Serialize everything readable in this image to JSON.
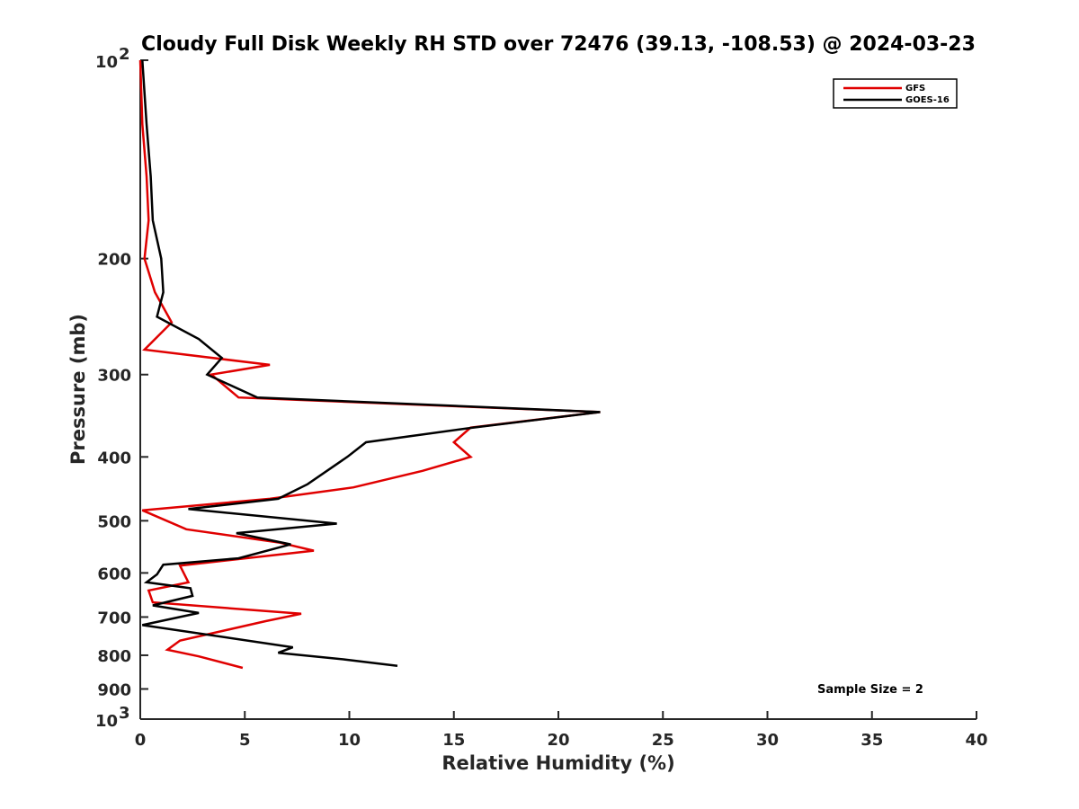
{
  "chart_data": {
    "type": "line",
    "title": "Cloudy Full Disk Weekly RH STD over 72476 (39.13, -108.53) @ 2024-03-23",
    "xlabel": "Relative Humidity (%)",
    "ylabel": "Pressure (mb)",
    "xlim": [
      0,
      40
    ],
    "ylim": [
      100,
      1000
    ],
    "yscale": "log",
    "y_reversed": true,
    "x_ticks": [
      "0",
      "5",
      "10",
      "15",
      "20",
      "25",
      "30",
      "35",
      "40"
    ],
    "y_ticks": [
      {
        "value": 100,
        "base": "10",
        "exp": "2"
      },
      {
        "value": 200,
        "label": "200"
      },
      {
        "value": 300,
        "label": "300"
      },
      {
        "value": 400,
        "label": "400"
      },
      {
        "value": 500,
        "label": "500"
      },
      {
        "value": 600,
        "label": "600"
      },
      {
        "value": 700,
        "label": "700"
      },
      {
        "value": 800,
        "label": "800"
      },
      {
        "value": 900,
        "label": "900"
      },
      {
        "value": 1000,
        "base": "10",
        "exp": "3"
      }
    ],
    "legend_position": "top-right",
    "grid": false,
    "annotation": "Sample Size = 2",
    "series": [
      {
        "name": "GFS",
        "color": "#e00000",
        "points": [
          [
            0.0,
            100
          ],
          [
            0.1,
            125
          ],
          [
            0.3,
            150
          ],
          [
            0.4,
            175
          ],
          [
            0.2,
            200
          ],
          [
            0.7,
            225
          ],
          [
            1.5,
            250
          ],
          [
            0.2,
            275
          ],
          [
            6.2,
            290
          ],
          [
            3.4,
            300
          ],
          [
            4.7,
            325
          ],
          [
            22.0,
            342
          ],
          [
            15.8,
            361
          ],
          [
            15.0,
            380
          ],
          [
            15.8,
            400
          ],
          [
            13.5,
            420
          ],
          [
            10.2,
            445
          ],
          [
            6.2,
            463
          ],
          [
            0.1,
            482
          ],
          [
            2.2,
            515
          ],
          [
            6.7,
            540
          ],
          [
            8.3,
            555
          ],
          [
            1.9,
            585
          ],
          [
            2.3,
            620
          ],
          [
            0.4,
            638
          ],
          [
            0.6,
            665
          ],
          [
            7.7,
            692
          ],
          [
            6.0,
            710
          ],
          [
            1.9,
            760
          ],
          [
            1.3,
            785
          ],
          [
            2.8,
            803
          ],
          [
            4.9,
            836
          ]
        ]
      },
      {
        "name": "GOES-16",
        "color": "#000000",
        "points": [
          [
            0.1,
            100
          ],
          [
            0.3,
            125
          ],
          [
            0.5,
            150
          ],
          [
            0.6,
            175
          ],
          [
            1.0,
            200
          ],
          [
            1.1,
            225
          ],
          [
            0.8,
            245
          ],
          [
            2.8,
            265
          ],
          [
            3.9,
            283
          ],
          [
            3.2,
            300
          ],
          [
            5.6,
            325
          ],
          [
            22.0,
            342
          ],
          [
            15.9,
            361
          ],
          [
            10.8,
            380
          ],
          [
            9.9,
            400
          ],
          [
            8.0,
            440
          ],
          [
            6.6,
            463
          ],
          [
            2.3,
            480
          ],
          [
            9.4,
            505
          ],
          [
            4.6,
            522
          ],
          [
            7.2,
            543
          ],
          [
            4.7,
            570
          ],
          [
            1.1,
            583
          ],
          [
            0.8,
            603
          ],
          [
            0.3,
            620
          ],
          [
            2.4,
            633
          ],
          [
            2.5,
            650
          ],
          [
            0.6,
            672
          ],
          [
            2.8,
            690
          ],
          [
            0.1,
            720
          ],
          [
            7.3,
            778
          ],
          [
            6.6,
            793
          ],
          [
            9.8,
            812
          ],
          [
            12.3,
            830
          ]
        ]
      }
    ]
  }
}
